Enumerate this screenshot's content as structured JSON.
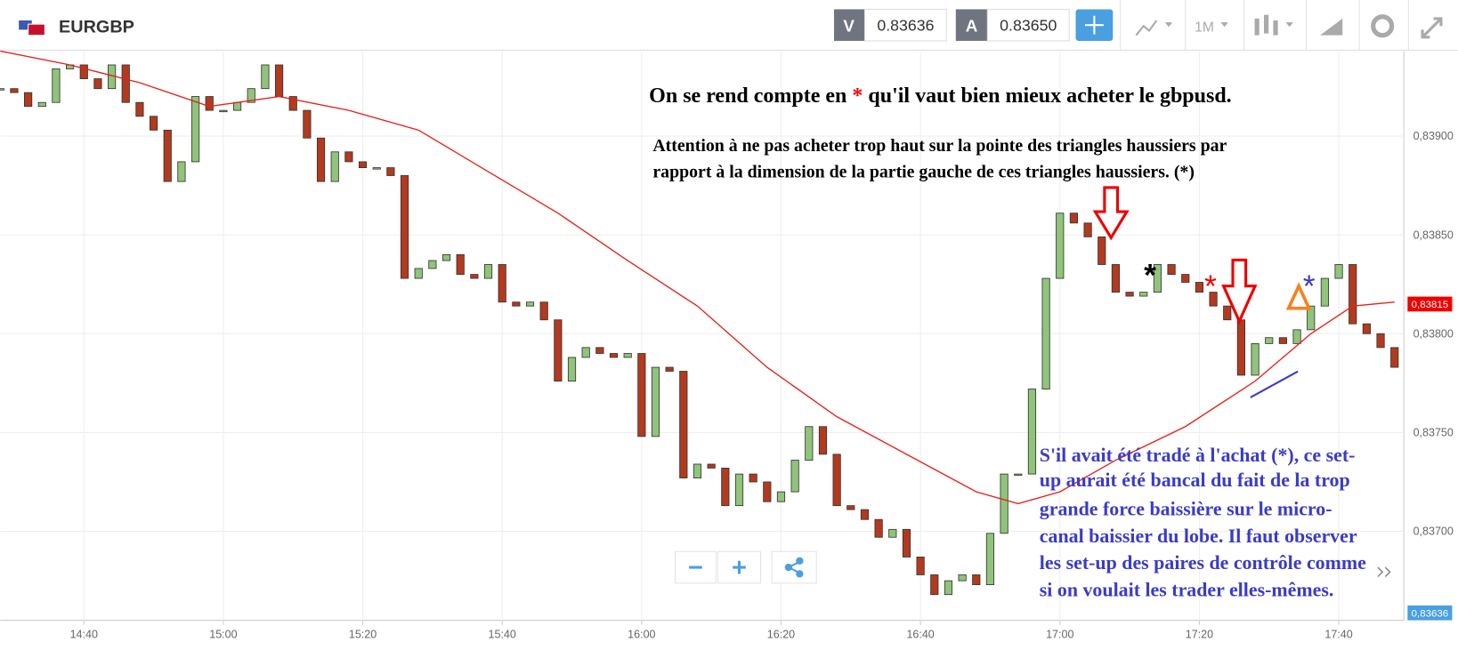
{
  "header": {
    "symbol": "EURGBP",
    "bid_label": "V",
    "bid": "0.83636",
    "ask_label": "A",
    "ask": "0.83650",
    "timeframe": "1M"
  },
  "annotations": {
    "headline_start": "On se rend compte en ",
    "headline_mark": "*",
    "headline_end": " qu'il vaut bien mieux acheter le gbpusd.",
    "note": [
      "Attention à ne pas acheter trop haut sur la pointe des triangles haussiers par",
      "rapport à la dimension de la partie gauche de ces triangles haussiers. (*)"
    ],
    "comment": [
      "S'il avait été tradé à l'achat (*), ce set-",
      "up aurait été bancal du fait de la trop",
      "grande force baissière sur le micro-",
      "canal baissier du lobe. Il faut observer",
      "les set-up des paires de contrôle comme",
      "si on voulait les trader elles-mêmes."
    ],
    "chart_marks": [
      "*",
      "*",
      "*"
    ]
  },
  "chart_data": {
    "type": "candlestick",
    "x": [
      868,
      870,
      872,
      874,
      876,
      878,
      880,
      882,
      884,
      886,
      888,
      890,
      892,
      894,
      896,
      898,
      900,
      902,
      904,
      906,
      908,
      910,
      912,
      914,
      916,
      918,
      920,
      922,
      924,
      926,
      928,
      930,
      932,
      934,
      936,
      938,
      940,
      942,
      944,
      946,
      948,
      950,
      952,
      954,
      956,
      958,
      960,
      962,
      964,
      966,
      968,
      970,
      972,
      974,
      976,
      978,
      980,
      982,
      984,
      986,
      988,
      990,
      992,
      994,
      996,
      998,
      1000,
      1002,
      1004,
      1006,
      1008,
      1010,
      1012,
      1014,
      1016,
      1018,
      1020,
      1022,
      1024,
      1026,
      1028,
      1030,
      1032,
      1034,
      1036,
      1038,
      1040,
      1042,
      1044,
      1046,
      1048,
      1050,
      1052,
      1054,
      1056,
      1058,
      1060,
      1062,
      1064,
      1066,
      1068
    ],
    "values": [
      0.83924,
      0.83922,
      0.83915,
      0.83917,
      0.83934,
      0.83936,
      0.83929,
      0.83924,
      0.83936,
      0.83917,
      0.8391,
      0.83903,
      0.83877,
      0.83887,
      0.8392,
      0.83913,
      0.83913,
      0.83917,
      0.83924,
      0.83936,
      0.8392,
      0.83913,
      0.83899,
      0.83877,
      0.83892,
      0.83887,
      0.83884,
      0.83884,
      0.8388,
      0.83828,
      0.83833,
      0.83837,
      0.8384,
      0.8383,
      0.83828,
      0.83835,
      0.83816,
      0.83814,
      0.83816,
      0.83807,
      0.83776,
      0.83788,
      0.83793,
      0.8379,
      0.83788,
      0.8379,
      0.83748,
      0.83783,
      0.83781,
      0.83727,
      0.83734,
      0.83732,
      0.83713,
      0.83729,
      0.83725,
      0.83715,
      0.8372,
      0.83736,
      0.83753,
      0.83739,
      0.83713,
      0.83711,
      0.83706,
      0.83697,
      0.83701,
      0.83687,
      0.83678,
      0.83668,
      0.83675,
      0.83678,
      0.83673,
      0.83699,
      0.83729,
      0.83729,
      0.83772,
      0.83828,
      0.83861,
      0.83856,
      0.83849,
      0.83835,
      0.83821,
      0.83819,
      0.83821,
      0.83835,
      0.8383,
      0.83826,
      0.83821,
      0.83814,
      0.83807,
      0.83779,
      0.83795,
      0.83798,
      0.83795,
      0.83802,
      0.83814,
      0.83828,
      0.83835,
      0.83805,
      0.838,
      0.83793,
      0.83783
    ],
    "up_color": "#8fc47a",
    "down_color": "#b23a1e",
    "overlay_x": [
      868,
      878,
      888,
      898,
      908,
      918,
      928,
      938,
      948,
      958,
      968,
      978,
      988,
      998,
      1008,
      1014,
      1020,
      1028,
      1038,
      1048,
      1056,
      1062,
      1068
    ],
    "overlay_values": [
      0.83943,
      0.83936,
      0.83927,
      0.83915,
      0.8392,
      0.83913,
      0.83903,
      0.83882,
      0.83861,
      0.83837,
      0.83814,
      0.83783,
      0.83758,
      0.83739,
      0.8372,
      0.83714,
      0.8372,
      0.83736,
      0.83753,
      0.83776,
      0.838,
      0.83814,
      0.83816
    ],
    "overlay_color": "#e8201a",
    "xlim": [
      868,
      1072
    ],
    "ylim": [
      0.83655,
      0.83943
    ],
    "xticks": [
      {
        "value": 880,
        "label": "14:40"
      },
      {
        "value": 900,
        "label": "15:00"
      },
      {
        "value": 920,
        "label": "15:20"
      },
      {
        "value": 940,
        "label": "15:40"
      },
      {
        "value": 960,
        "label": "16:00"
      },
      {
        "value": 980,
        "label": "16:20"
      },
      {
        "value": 1000,
        "label": "16:40"
      },
      {
        "value": 1020,
        "label": "17:00"
      },
      {
        "value": 1040,
        "label": "17:20"
      },
      {
        "value": 1060,
        "label": "17:40"
      }
    ],
    "yticks": [
      {
        "value": 0.837,
        "label": "0,83700"
      },
      {
        "value": 0.8375,
        "label": "0,83750"
      },
      {
        "value": 0.838,
        "label": "0,83800"
      },
      {
        "value": 0.8385,
        "label": "0,83850"
      },
      {
        "value": 0.839,
        "label": "0,83900"
      }
    ],
    "grid": true,
    "price_tags": [
      {
        "value": 0.83815,
        "label": "0,83815",
        "color": "#f00000"
      },
      {
        "value": 0.83636,
        "label": "0,83636",
        "color": "#4a9fe0"
      }
    ]
  }
}
